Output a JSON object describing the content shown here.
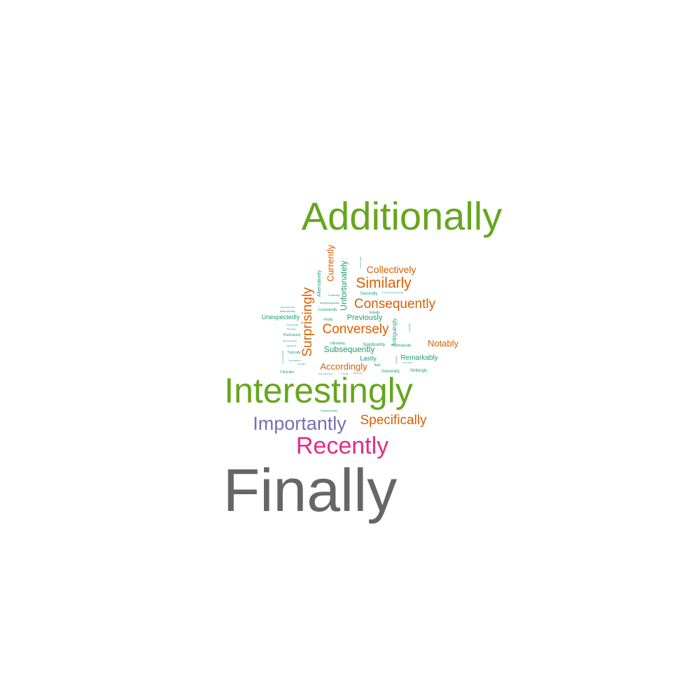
{
  "colors": {
    "green": "#66a61e",
    "teal": "#1b9e77",
    "orange": "#d95f02",
    "purple": "#7570b3",
    "pink": "#e7298a",
    "gray": "#666666"
  },
  "words": [
    {
      "text": "Finally",
      "color": "gray",
      "rotated": false
    },
    {
      "text": "Additionally",
      "color": "green",
      "rotated": false
    },
    {
      "text": "Interestingly",
      "color": "green",
      "rotated": false
    },
    {
      "text": "Recently",
      "color": "pink",
      "rotated": false
    },
    {
      "text": "Importantly",
      "color": "purple",
      "rotated": false
    },
    {
      "text": "Specifically",
      "color": "orange",
      "rotated": false
    },
    {
      "text": "Similarly",
      "color": "orange",
      "rotated": false
    },
    {
      "text": "Consequently",
      "color": "orange",
      "rotated": false
    },
    {
      "text": "Conversely",
      "color": "orange",
      "rotated": false
    },
    {
      "text": "Collectively",
      "color": "orange",
      "rotated": false
    },
    {
      "text": "Accordingly",
      "color": "orange",
      "rotated": false
    },
    {
      "text": "Notably",
      "color": "orange",
      "rotated": false
    },
    {
      "text": "Surprisingly",
      "color": "orange",
      "rotated": true
    },
    {
      "text": "Currently",
      "color": "orange",
      "rotated": true
    },
    {
      "text": "Unfortunately",
      "color": "teal",
      "rotated": true
    },
    {
      "text": "Subsequently",
      "color": "teal",
      "rotated": false
    },
    {
      "text": "Previously",
      "color": "teal",
      "rotated": false
    },
    {
      "text": "Remarkably",
      "color": "teal",
      "rotated": false
    },
    {
      "text": "Unexpectedly",
      "color": "teal",
      "rotated": false
    },
    {
      "text": "Lastly",
      "color": "teal",
      "rotated": false
    },
    {
      "text": "Intriguingly",
      "color": "teal",
      "rotated": true
    },
    {
      "text": "Alternatively",
      "color": "teal",
      "rotated": true
    },
    {
      "text": "Significantly",
      "color": "teal",
      "rotated": false
    },
    {
      "text": "Strikingly",
      "color": "teal",
      "rotated": false
    },
    {
      "text": "Generally",
      "color": "teal",
      "rotated": false
    },
    {
      "text": "Histologically",
      "color": "teal",
      "rotated": false
    },
    {
      "text": "Secondly",
      "color": "teal",
      "rotated": false
    },
    {
      "text": "Initially",
      "color": "teal",
      "rotated": false
    },
    {
      "text": "Ultimately",
      "color": "teal",
      "rotated": false
    },
    {
      "text": "Consistently",
      "color": "teal",
      "rotated": false
    },
    {
      "text": "Typically",
      "color": "teal",
      "rotated": false
    },
    {
      "text": "Particularly",
      "color": "teal",
      "rotated": false
    },
    {
      "text": "Clinically",
      "color": "teal",
      "rotated": false
    },
    {
      "text": "Italy",
      "color": "teal",
      "rotated": false
    },
    {
      "text": "Firstly",
      "color": "teal",
      "rotated": false
    },
    {
      "text": "Paradoxically",
      "color": "teal",
      "rotated": false
    },
    {
      "text": "Methodically",
      "color": "teal",
      "rotated": false
    },
    {
      "text": "Morphologically",
      "color": "teal",
      "rotated": false
    },
    {
      "text": "Curiously",
      "color": "teal",
      "rotated": false
    },
    {
      "text": "Immunohistochemically",
      "color": "teal",
      "rotated": false
    },
    {
      "text": "Thereafter",
      "color": "teal",
      "rotated": false
    },
    {
      "text": "Nonetheless",
      "color": "teal",
      "rotated": false
    },
    {
      "text": "Mechanistically",
      "color": "teal",
      "rotated": false
    },
    {
      "text": "Microscopically",
      "color": "teal",
      "rotated": false
    },
    {
      "text": "Apparently",
      "color": "teal",
      "rotated": false
    },
    {
      "text": "Theoretically",
      "color": "teal",
      "rotated": false
    },
    {
      "text": "Concomitantly",
      "color": "teal",
      "rotated": true
    },
    {
      "text": "Overall",
      "color": "teal",
      "rotated": false
    },
    {
      "text": "Frequently",
      "color": "teal",
      "rotated": false
    },
    {
      "text": "Clinically",
      "color": "teal",
      "rotated": true
    },
    {
      "text": "Hopefully",
      "color": "teal",
      "rotated": true
    },
    {
      "text": "Concurrently",
      "color": "teal",
      "rotated": true
    },
    {
      "text": "Obviously",
      "color": "teal",
      "rotated": false
    },
    {
      "text": "Similarly",
      "color": "teal",
      "rotated": false
    },
    {
      "text": "Retrospectively",
      "color": "teal",
      "rotated": false
    }
  ]
}
